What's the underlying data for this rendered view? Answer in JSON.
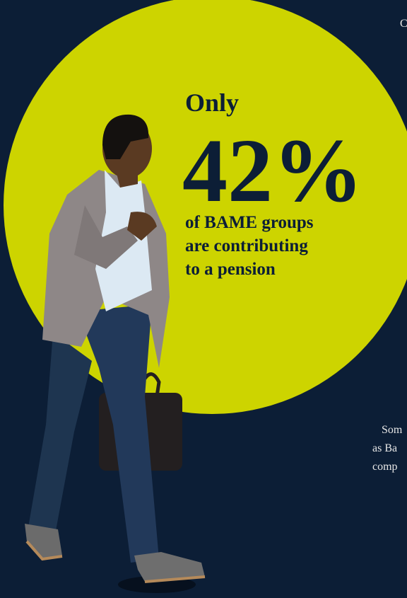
{
  "headline": {
    "lead": "Only",
    "figure": "42%",
    "lines": [
      "of BAME groups",
      "are contributing",
      "to a pension"
    ]
  },
  "side_text": {
    "top": "C",
    "lines": [
      "Som",
      "as Ba",
      "comp"
    ]
  }
}
